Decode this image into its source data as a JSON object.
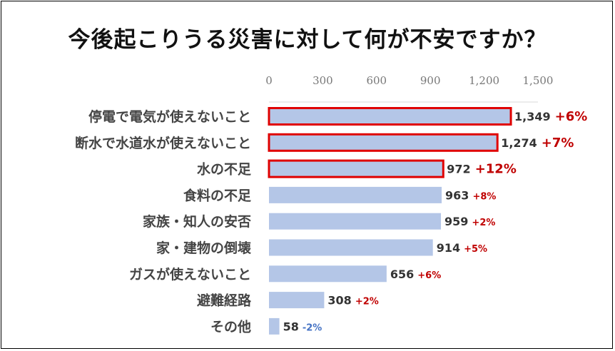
{
  "title": "今後起こりうる災害に対して何が不安ですか？",
  "chart_data": {
    "type": "bar",
    "orientation": "horizontal",
    "title": "今後起こりうる災害に対して何が不安ですか？",
    "xlim": [
      0,
      1500
    ],
    "xticks": [
      "0",
      "300",
      "600",
      "900",
      "1,200",
      "1,500"
    ],
    "xtick_values": [
      0,
      300,
      600,
      900,
      1200,
      1500
    ],
    "bar_color": "#b4c6e7",
    "highlight_color": "#e00000",
    "positive_change_color": "#c00000",
    "negative_change_color": "#4472c4",
    "categories": [
      "停電で電気が使えないこと",
      "断水で水道水が使えないこと",
      "水の不足",
      "食料の不足",
      "家族・知人の安否",
      "家・建物の倒壊",
      "ガスが使えないこと",
      "避難経路",
      "その他"
    ],
    "values": [
      1349,
      1274,
      972,
      963,
      959,
      914,
      656,
      308,
      58
    ],
    "value_labels": [
      "1,349",
      "1,274",
      "972",
      "963",
      "959",
      "914",
      "656",
      "308",
      "58"
    ],
    "change_labels": [
      "+6%",
      "+7%",
      "+12%",
      "+8%",
      "+2%",
      "+5%",
      "+6%",
      "+2%",
      "-2%"
    ],
    "changes": [
      6,
      7,
      12,
      8,
      2,
      5,
      6,
      2,
      -2
    ],
    "highlighted": [
      true,
      true,
      true,
      false,
      false,
      false,
      false,
      false,
      false
    ]
  }
}
